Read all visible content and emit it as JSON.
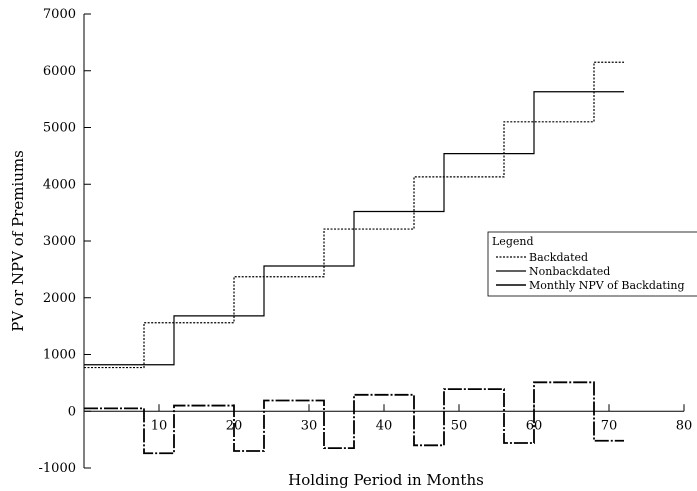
{
  "chart_data": {
    "type": "line",
    "title": "",
    "xlabel": "Holding Period in Months",
    "ylabel": "PV or NPV of Premiums",
    "xlim": [
      0,
      80
    ],
    "ylim": [
      -1000,
      7000
    ],
    "xticks": [
      10,
      20,
      30,
      40,
      50,
      60,
      70,
      80
    ],
    "yticks": [
      -1000,
      0,
      1000,
      2000,
      3000,
      4000,
      5000,
      6000,
      7000
    ],
    "grid": false,
    "legend": {
      "title": "Legend",
      "placement": "right",
      "entries": [
        "Backdated",
        "Nonbackdated",
        "Monthly NPV of Backdating"
      ]
    },
    "series": [
      {
        "name": "Backdated",
        "style": "dotted",
        "points": [
          [
            0,
            770
          ],
          [
            8,
            770
          ],
          [
            8,
            1560
          ],
          [
            20,
            1560
          ],
          [
            20,
            2370
          ],
          [
            32,
            2370
          ],
          [
            32,
            3210
          ],
          [
            44,
            3210
          ],
          [
            44,
            4130
          ],
          [
            56,
            4130
          ],
          [
            56,
            5100
          ],
          [
            68,
            5100
          ],
          [
            68,
            6150
          ],
          [
            72,
            6150
          ]
        ]
      },
      {
        "name": "Nonbackdated",
        "style": "solid",
        "points": [
          [
            0,
            820
          ],
          [
            12,
            820
          ],
          [
            12,
            1680
          ],
          [
            24,
            1680
          ],
          [
            24,
            2560
          ],
          [
            36,
            2560
          ],
          [
            36,
            3520
          ],
          [
            48,
            3520
          ],
          [
            48,
            4540
          ],
          [
            60,
            4540
          ],
          [
            60,
            5630
          ],
          [
            72,
            5630
          ]
        ]
      },
      {
        "name": "Monthly NPV of Backdating",
        "style": "dashdot",
        "points": [
          [
            0,
            50
          ],
          [
            8,
            50
          ],
          [
            8,
            -740
          ],
          [
            12,
            -740
          ],
          [
            12,
            100
          ],
          [
            20,
            100
          ],
          [
            20,
            -700
          ],
          [
            24,
            -700
          ],
          [
            24,
            190
          ],
          [
            32,
            190
          ],
          [
            32,
            -650
          ],
          [
            36,
            -650
          ],
          [
            36,
            290
          ],
          [
            44,
            290
          ],
          [
            44,
            -600
          ],
          [
            48,
            -600
          ],
          [
            48,
            390
          ],
          [
            56,
            390
          ],
          [
            56,
            -560
          ],
          [
            60,
            -560
          ],
          [
            60,
            510
          ],
          [
            68,
            510
          ],
          [
            68,
            -520
          ],
          [
            72,
            -520
          ]
        ]
      }
    ]
  }
}
